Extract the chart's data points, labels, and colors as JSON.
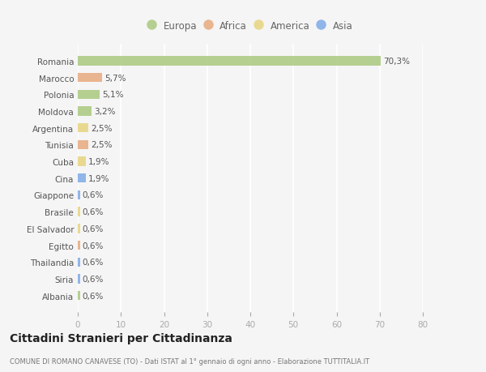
{
  "countries": [
    "Romania",
    "Marocco",
    "Polonia",
    "Moldova",
    "Argentina",
    "Tunisia",
    "Cuba",
    "Cina",
    "Giappone",
    "Brasile",
    "El Salvador",
    "Egitto",
    "Thailandia",
    "Siria",
    "Albania"
  ],
  "values": [
    70.3,
    5.7,
    5.1,
    3.2,
    2.5,
    2.5,
    1.9,
    1.9,
    0.6,
    0.6,
    0.6,
    0.6,
    0.6,
    0.6,
    0.6
  ],
  "labels": [
    "70,3%",
    "5,7%",
    "5,1%",
    "3,2%",
    "2,5%",
    "2,5%",
    "1,9%",
    "1,9%",
    "0,6%",
    "0,6%",
    "0,6%",
    "0,6%",
    "0,6%",
    "0,6%",
    "0,6%"
  ],
  "categories": [
    "Europa",
    "Africa",
    "Europa",
    "Europa",
    "America",
    "Africa",
    "America",
    "Asia",
    "Asia",
    "America",
    "America",
    "Africa",
    "Asia",
    "Asia",
    "Europa"
  ],
  "colors": {
    "Europa": "#aac97e",
    "Africa": "#e8a97e",
    "America": "#e8d47e",
    "Asia": "#7eaae8"
  },
  "legend_order": [
    "Europa",
    "Africa",
    "America",
    "Asia"
  ],
  "xlim": [
    0,
    80
  ],
  "xticks": [
    0,
    10,
    20,
    30,
    40,
    50,
    60,
    70,
    80
  ],
  "title": "Cittadini Stranieri per Cittadinanza",
  "subtitle": "COMUNE DI ROMANO CANAVESE (TO) - Dati ISTAT al 1° gennaio di ogni anno - Elaborazione TUTTITALIA.IT",
  "bg_color": "#f5f5f5",
  "grid_color": "#ffffff",
  "bar_height": 0.55,
  "label_fontsize": 7.5,
  "ytick_fontsize": 7.5,
  "xtick_fontsize": 7.5
}
